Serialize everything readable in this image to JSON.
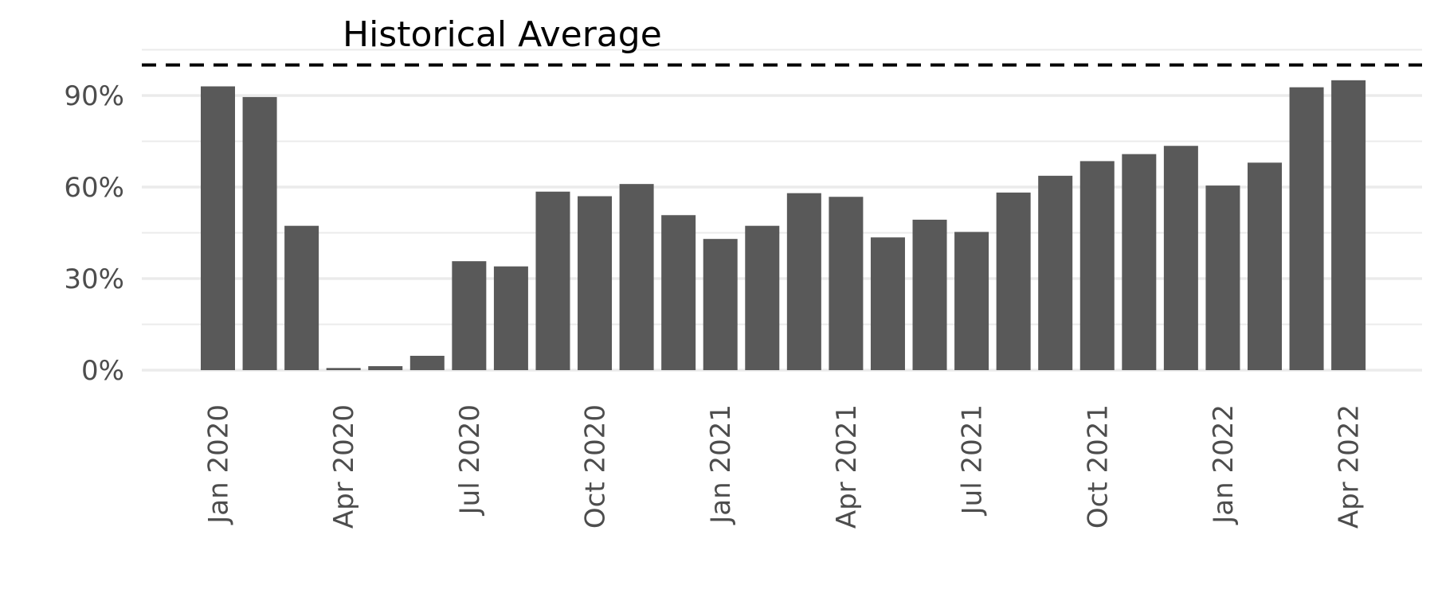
{
  "chart_data": {
    "type": "bar",
    "x": [
      "Jan 2020",
      "Feb 2020",
      "Mar 2020",
      "Apr 2020",
      "May 2020",
      "Jun 2020",
      "Jul 2020",
      "Aug 2020",
      "Sep 2020",
      "Oct 2020",
      "Nov 2020",
      "Dec 2020",
      "Jan 2021",
      "Feb 2021",
      "Mar 2021",
      "Apr 2021",
      "May 2021",
      "Jun 2021",
      "Jul 2021",
      "Aug 2021",
      "Sep 2021",
      "Oct 2021",
      "Nov 2021",
      "Dec 2021",
      "Jan 2022",
      "Feb 2022",
      "Mar 2022",
      "Apr 2022"
    ],
    "values": [
      0.93,
      0.895,
      0.473,
      0.007,
      0.013,
      0.047,
      0.357,
      0.34,
      0.585,
      0.57,
      0.61,
      0.508,
      0.43,
      0.473,
      0.58,
      0.568,
      0.435,
      0.493,
      0.453,
      0.582,
      0.637,
      0.685,
      0.708,
      0.735,
      0.605,
      0.68,
      0.927,
      0.95
    ],
    "reference_line": {
      "label": "Historical Average",
      "value": 1.0,
      "style": "dashed"
    },
    "x_ticks": [
      "Jan 2020",
      "Apr 2020",
      "Jul 2020",
      "Oct 2020",
      "Jan 2021",
      "Apr 2021",
      "Jul 2021",
      "Oct 2021",
      "Jan 2022",
      "Apr 2022"
    ],
    "y_ticks": [
      0,
      0.3,
      0.6,
      0.9
    ],
    "y_tick_labels": [
      "0%",
      "30%",
      "60%",
      "90%"
    ],
    "ylim": [
      0,
      1.05
    ],
    "grid": true,
    "legend": "none",
    "colors": {
      "bar": "#595959",
      "grid": "#ebebeb",
      "reference": "#000000"
    }
  }
}
